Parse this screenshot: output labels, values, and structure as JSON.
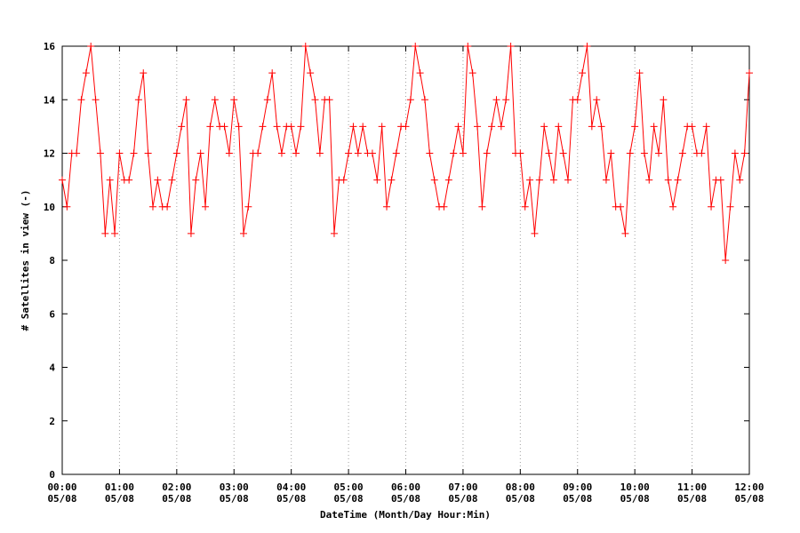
{
  "chart_data": {
    "type": "line",
    "xlabel": "DateTime (Month/Day Hour:Min)",
    "ylabel": "# Satellites in view (-)",
    "xlim": [
      "05/08 00:00",
      "05/08 12:00"
    ],
    "xticks": [
      {
        "value": "05/08 00:00",
        "label": "00:00\n05/08"
      },
      {
        "value": "05/08 01:00",
        "label": "01:00\n05/08"
      },
      {
        "value": "05/08 02:00",
        "label": "02:00\n05/08"
      },
      {
        "value": "05/08 03:00",
        "label": "03:00\n05/08"
      },
      {
        "value": "05/08 04:00",
        "label": "04:00\n05/08"
      },
      {
        "value": "05/08 05:00",
        "label": "05:00\n05/08"
      },
      {
        "value": "05/08 06:00",
        "label": "06:00\n05/08"
      },
      {
        "value": "05/08 07:00",
        "label": "07:00\n05/08"
      },
      {
        "value": "05/08 08:00",
        "label": "08:00\n05/08"
      },
      {
        "value": "05/08 09:00",
        "label": "09:00\n05/08"
      },
      {
        "value": "05/08 10:00",
        "label": "10:00\n05/08"
      },
      {
        "value": "05/08 11:00",
        "label": "11:00\n05/08"
      },
      {
        "value": "05/08 12:00",
        "label": "12:00\n05/08"
      }
    ],
    "ylim": [
      0,
      16
    ],
    "yticks": [
      0,
      2,
      4,
      6,
      8,
      10,
      12,
      14,
      16
    ],
    "grid": "x",
    "x": [
      "05/08 00:00",
      "05/08 00:05",
      "05/08 00:10",
      "05/08 00:15",
      "05/08 00:20",
      "05/08 00:25",
      "05/08 00:30",
      "05/08 00:35",
      "05/08 00:40",
      "05/08 00:45",
      "05/08 00:50",
      "05/08 00:55",
      "05/08 01:00",
      "05/08 01:05",
      "05/08 01:10",
      "05/08 01:15",
      "05/08 01:20",
      "05/08 01:25",
      "05/08 01:30",
      "05/08 01:35",
      "05/08 01:40",
      "05/08 01:45",
      "05/08 01:50",
      "05/08 01:55",
      "05/08 02:00",
      "05/08 02:05",
      "05/08 02:10",
      "05/08 02:15",
      "05/08 02:20",
      "05/08 02:25",
      "05/08 02:30",
      "05/08 02:35",
      "05/08 02:40",
      "05/08 02:45",
      "05/08 02:50",
      "05/08 02:55",
      "05/08 03:00",
      "05/08 03:05",
      "05/08 03:10",
      "05/08 03:15",
      "05/08 03:20",
      "05/08 03:25",
      "05/08 03:30",
      "05/08 03:35",
      "05/08 03:40",
      "05/08 03:45",
      "05/08 03:50",
      "05/08 03:55",
      "05/08 04:00",
      "05/08 04:05",
      "05/08 04:10",
      "05/08 04:15",
      "05/08 04:20",
      "05/08 04:25",
      "05/08 04:30",
      "05/08 04:35",
      "05/08 04:40",
      "05/08 04:45",
      "05/08 04:50",
      "05/08 04:55",
      "05/08 05:00",
      "05/08 05:05",
      "05/08 05:10",
      "05/08 05:15",
      "05/08 05:20",
      "05/08 05:25",
      "05/08 05:30",
      "05/08 05:35",
      "05/08 05:40",
      "05/08 05:45",
      "05/08 05:50",
      "05/08 05:55",
      "05/08 06:00",
      "05/08 06:05",
      "05/08 06:10",
      "05/08 06:15",
      "05/08 06:20",
      "05/08 06:25",
      "05/08 06:30",
      "05/08 06:35",
      "05/08 06:40",
      "05/08 06:45",
      "05/08 06:50",
      "05/08 06:55",
      "05/08 07:00",
      "05/08 07:05",
      "05/08 07:10",
      "05/08 07:15",
      "05/08 07:20",
      "05/08 07:25",
      "05/08 07:30",
      "05/08 07:35",
      "05/08 07:40",
      "05/08 07:45",
      "05/08 07:50",
      "05/08 07:55",
      "05/08 08:00",
      "05/08 08:05",
      "05/08 08:10",
      "05/08 08:15",
      "05/08 08:20",
      "05/08 08:25",
      "05/08 08:30",
      "05/08 08:35",
      "05/08 08:40",
      "05/08 08:45",
      "05/08 08:50",
      "05/08 08:55",
      "05/08 09:00",
      "05/08 09:05",
      "05/08 09:10",
      "05/08 09:15",
      "05/08 09:20",
      "05/08 09:25",
      "05/08 09:30",
      "05/08 09:35",
      "05/08 09:40",
      "05/08 09:45",
      "05/08 09:50",
      "05/08 09:55",
      "05/08 10:00",
      "05/08 10:05",
      "05/08 10:10",
      "05/08 10:15",
      "05/08 10:20",
      "05/08 10:25",
      "05/08 10:30",
      "05/08 10:35",
      "05/08 10:40",
      "05/08 10:45",
      "05/08 10:50",
      "05/08 10:55",
      "05/08 11:00",
      "05/08 11:05",
      "05/08 11:10",
      "05/08 11:15",
      "05/08 11:20",
      "05/08 11:25",
      "05/08 11:30",
      "05/08 11:35",
      "05/08 11:40",
      "05/08 11:45",
      "05/08 11:50",
      "05/08 11:55",
      "05/08 12:00"
    ],
    "series": [
      {
        "color": "#ff0000",
        "values": [
          11,
          10,
          12,
          12,
          14,
          15,
          16,
          14,
          12,
          9,
          11,
          9,
          12,
          11,
          11,
          12,
          14,
          15,
          12,
          10,
          11,
          10,
          10,
          11,
          12,
          13,
          14,
          9,
          11,
          12,
          10,
          13,
          14,
          13,
          13,
          12,
          14,
          13,
          9,
          10,
          12,
          12,
          13,
          14,
          15,
          13,
          12,
          13,
          13,
          12,
          13,
          16,
          15,
          14,
          12,
          14,
          14,
          9,
          11,
          11,
          12,
          13,
          12,
          13,
          12,
          12,
          11,
          13,
          10,
          11,
          12,
          13,
          13,
          14,
          16,
          15,
          14,
          12,
          11,
          10,
          10,
          11,
          12,
          13,
          12,
          16,
          15,
          13,
          10,
          12,
          13,
          14,
          13,
          14,
          16,
          12,
          12,
          10,
          11,
          9,
          11,
          13,
          12,
          11,
          13,
          12,
          11,
          14,
          14,
          15,
          16,
          13,
          14,
          13,
          11,
          12,
          10,
          10,
          9,
          12,
          13,
          15,
          12,
          11,
          13,
          12,
          14,
          11,
          10,
          11,
          12,
          13,
          13,
          12,
          12,
          13,
          10,
          11,
          11,
          8,
          10,
          12,
          11,
          12,
          15
        ]
      }
    ]
  }
}
